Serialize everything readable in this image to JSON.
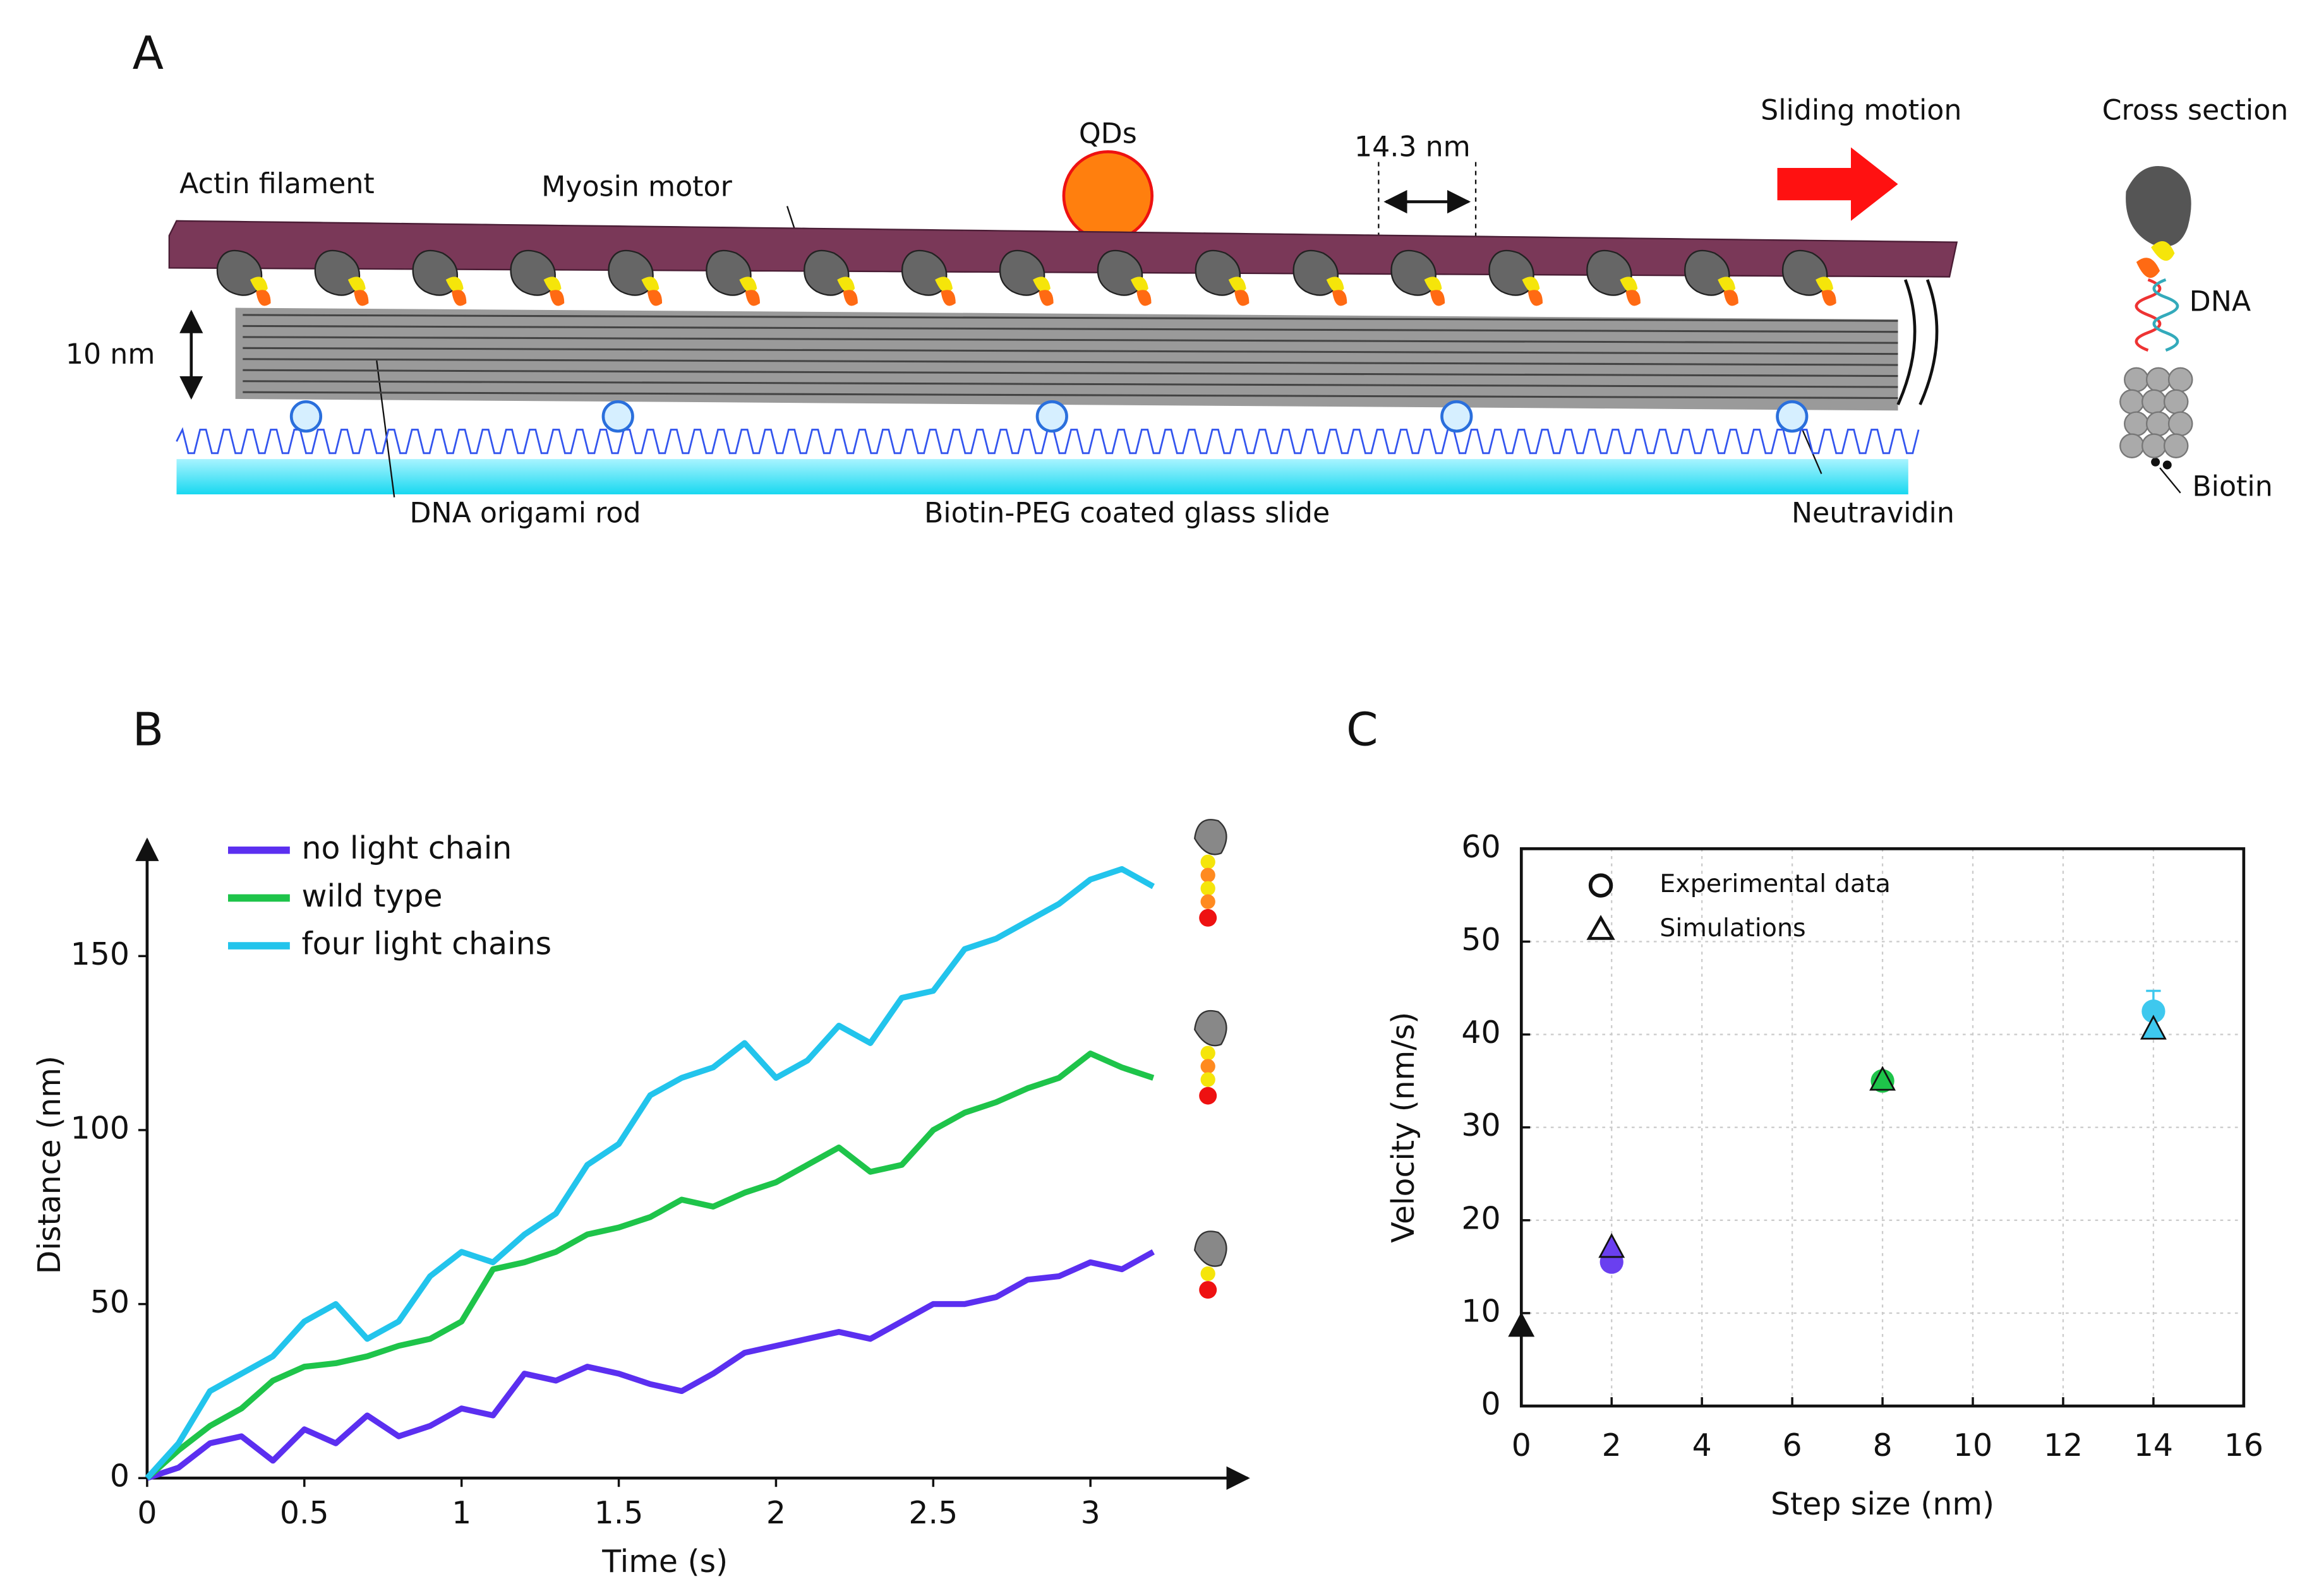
{
  "panels": {
    "a": "A",
    "b": "B",
    "c": "C"
  },
  "diagram": {
    "actin": "Actin filament",
    "myosin": "Myosin motor",
    "qds": "QDs",
    "spacing": "14.3 nm",
    "sliding": "Sliding motion",
    "cross_section": "Cross section",
    "height": "10 nm",
    "dna": "DNA",
    "biotin": "Biotin",
    "rod": "DNA origami rod",
    "slide": "Biotin-PEG coated glass slide",
    "neutravidin": "Neutravidin"
  },
  "chart_data": [
    {
      "type": "line",
      "xlabel": "Time (s)",
      "ylabel": "Distance (nm)",
      "xlim": [
        0,
        3.5
      ],
      "ylim": [
        0,
        180
      ],
      "xticks": [
        0,
        0.5,
        1,
        1.5,
        2,
        2.5,
        3
      ],
      "yticks": [
        0,
        50,
        100,
        150
      ],
      "grid": false,
      "legend": "upper left",
      "x": [
        0,
        0.1,
        0.2,
        0.3,
        0.4,
        0.5,
        0.6,
        0.7,
        0.8,
        0.9,
        1,
        1.1,
        1.2,
        1.3,
        1.4,
        1.5,
        1.6,
        1.7,
        1.8,
        1.9,
        2,
        2.1,
        2.2,
        2.3,
        2.4,
        2.5,
        2.6,
        2.7,
        2.8,
        2.9,
        3,
        3.1,
        3.2
      ],
      "series": [
        {
          "name": "no light chain",
          "color": "#5b2ff0",
          "values": [
            0,
            3,
            10,
            12,
            5,
            14,
            10,
            18,
            12,
            15,
            20,
            18,
            30,
            28,
            32,
            30,
            27,
            25,
            30,
            36,
            38,
            40,
            42,
            40,
            45,
            50,
            50,
            52,
            57,
            58,
            62,
            60,
            65
          ]
        },
        {
          "name": "wild type",
          "color": "#1ec44a",
          "values": [
            0,
            8,
            15,
            20,
            28,
            32,
            33,
            35,
            38,
            40,
            45,
            60,
            62,
            65,
            70,
            72,
            75,
            80,
            78,
            82,
            85,
            90,
            95,
            88,
            90,
            100,
            105,
            108,
            112,
            115,
            122,
            118,
            115
          ]
        },
        {
          "name": "four light chains",
          "color": "#22c4ec",
          "values": [
            0,
            10,
            25,
            30,
            35,
            45,
            50,
            40,
            45,
            58,
            65,
            62,
            70,
            76,
            90,
            96,
            110,
            115,
            118,
            125,
            115,
            120,
            130,
            125,
            138,
            140,
            152,
            155,
            160,
            165,
            172,
            175,
            170
          ]
        }
      ]
    },
    {
      "type": "scatter",
      "xlabel": "Step size (nm)",
      "ylabel": "Velocity (nm/s)",
      "xlim": [
        0,
        16
      ],
      "ylim": [
        0,
        60
      ],
      "xticks": [
        0,
        2,
        4,
        6,
        8,
        10,
        12,
        14,
        16
      ],
      "yticks": [
        0,
        10,
        20,
        30,
        40,
        50,
        60
      ],
      "grid": true,
      "legend": "upper left",
      "series": [
        {
          "name": "Experimental data",
          "marker": "circle",
          "x": [
            2,
            8,
            14
          ],
          "values": [
            15.5,
            35,
            42.5
          ],
          "errors": [
            null,
            null,
            2.2
          ],
          "colors": [
            "#6a3ff0",
            "#1ec44a",
            "#3ec8ee"
          ]
        },
        {
          "name": "Simulations",
          "marker": "triangle",
          "x": [
            0,
            2,
            8,
            14
          ],
          "values": [
            8.5,
            17,
            35,
            40.5
          ],
          "colors": [
            "#111111",
            "#6a3ff0",
            "#1ec44a",
            "#3ec8ee"
          ]
        }
      ]
    }
  ]
}
